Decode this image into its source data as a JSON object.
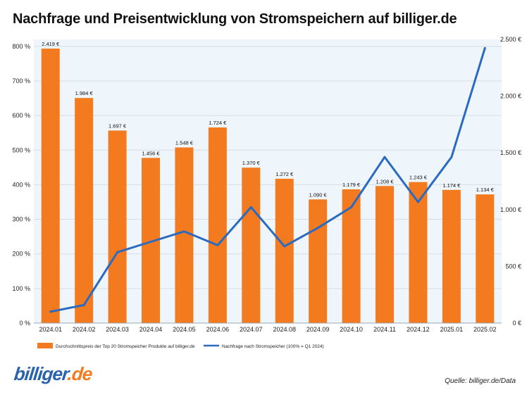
{
  "title": "Nachfrage und Preisentwicklung von Stromspeichern auf billiger.de",
  "source_note": "Quelle: billiger.de/Data",
  "logo": {
    "text_main": "billiger",
    "text_tld": ".de"
  },
  "colors": {
    "bar": "#f47a1f",
    "line": "#2a6bc0",
    "plot_background": "#eef6fb",
    "grid": "#d4dde6"
  },
  "chart_data": {
    "type": "bar+line",
    "categories": [
      "2024.01",
      "2024.02",
      "2024.03",
      "2024.04",
      "2024.05",
      "2024.06",
      "2024.07",
      "2024.08",
      "2024.09",
      "2024.10",
      "2024.11",
      "2024.12",
      "2025.01",
      "2025.02"
    ],
    "series": [
      {
        "name": "Durchschnittspreis der Top 20 Stromspeicher Produkte auf billiger.de",
        "type": "bar",
        "axis": "right",
        "values": [
          2419,
          1984,
          1697,
          1456,
          1548,
          1724,
          1370,
          1272,
          1090,
          1179,
          1208,
          1243,
          1174,
          1134
        ],
        "labels": [
          "2.419 €",
          "1.984 €",
          "1.697 €",
          "1.456 €",
          "1.548 €",
          "1.724 €",
          "1.370 €",
          "1.272 €",
          "1.090 €",
          "1.179 €",
          "1.208 €",
          "1.243 €",
          "1.174 €",
          "1.134 €"
        ]
      },
      {
        "name": "Nachfrage nach Stromspeicher (100% = Q1 2024)",
        "type": "line",
        "axis": "left",
        "values": [
          33,
          52,
          205,
          235,
          265,
          225,
          335,
          222,
          275,
          335,
          480,
          350,
          480,
          795
        ]
      }
    ],
    "y_left": {
      "min": 0,
      "max": 820,
      "ticks": [
        0,
        100,
        200,
        300,
        400,
        500,
        600,
        700,
        800
      ],
      "tick_labels": [
        "0 %",
        "100 %",
        "200 %",
        "300 %",
        "400 %",
        "500 %",
        "600 %",
        "700 %",
        "800 %"
      ]
    },
    "y_right": {
      "min": 0,
      "max": 2500,
      "ticks": [
        0,
        500,
        1000,
        1500,
        2000,
        2500
      ],
      "tick_labels": [
        "0 €",
        "500 €",
        "1.000 €",
        "1.500 €",
        "2.000 €",
        "2.500 €"
      ]
    },
    "grid": true,
    "legend_position": "bottom"
  }
}
